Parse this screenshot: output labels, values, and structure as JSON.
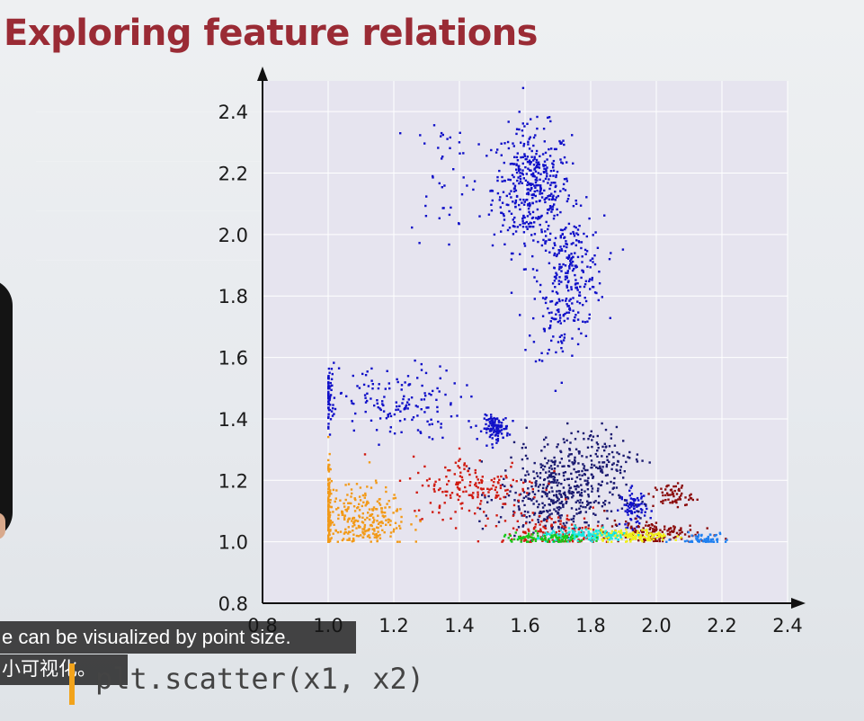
{
  "slide": {
    "title": "Exploring feature relations",
    "code": "plt.scatter(x1, x2)"
  },
  "subtitles": {
    "english": "e can be visualized by point size.",
    "chinese": "小可视化。"
  },
  "colors": {
    "title": "#9a2b35",
    "plot_background": "#e6e4ef",
    "caption_background": "#141414",
    "cursor": "#f2a31b"
  },
  "chart_data": {
    "type": "scatter",
    "xlim": [
      0.8,
      2.4
    ],
    "ylim": [
      0.8,
      2.5
    ],
    "x_ticks": [
      "0.8",
      "1.0",
      "1.2",
      "1.4",
      "1.6",
      "1.8",
      "2.0",
      "2.2",
      "2.4"
    ],
    "y_ticks": [
      "0.8",
      "1.0",
      "1.2",
      "1.4",
      "1.6",
      "1.8",
      "2.0",
      "2.2",
      "2.4"
    ],
    "x_tick_values": [
      0.8,
      1.0,
      1.2,
      1.4,
      1.6,
      1.8,
      2.0,
      2.2,
      2.4
    ],
    "y_tick_values": [
      0.8,
      1.0,
      1.2,
      1.4,
      1.6,
      1.8,
      2.0,
      2.2,
      2.4
    ],
    "grid": true,
    "clusters": [
      {
        "color": "#1010c8",
        "cx": 1.62,
        "cy": 2.15,
        "sx": 0.06,
        "sy": 0.1,
        "n": 420
      },
      {
        "color": "#1010c8",
        "cx": 1.74,
        "cy": 1.88,
        "sx": 0.05,
        "sy": 0.09,
        "n": 220
      },
      {
        "color": "#1010c8",
        "cx": 1.7,
        "cy": 1.72,
        "sx": 0.04,
        "sy": 0.08,
        "n": 70
      },
      {
        "color": "#1010c8",
        "cx": 1.35,
        "cy": 2.2,
        "sx": 0.05,
        "sy": 0.12,
        "n": 40
      },
      {
        "color": "#1010c8",
        "cx": 1.2,
        "cy": 1.45,
        "sx": 0.1,
        "sy": 0.06,
        "n": 150
      },
      {
        "color": "#1010c8",
        "cx": 1.0,
        "cy": 1.48,
        "sx": 0.01,
        "sy": 0.05,
        "n": 60
      },
      {
        "color": "#1010c8",
        "cx": 1.51,
        "cy": 1.37,
        "sx": 0.02,
        "sy": 0.02,
        "n": 120
      },
      {
        "color": "#1010c8",
        "cx": 1.93,
        "cy": 1.11,
        "sx": 0.02,
        "sy": 0.03,
        "n": 90
      },
      {
        "color": "#1a1a70",
        "cx": 1.7,
        "cy": 1.15,
        "sx": 0.09,
        "sy": 0.07,
        "n": 420
      },
      {
        "color": "#1a1a70",
        "cx": 1.8,
        "cy": 1.28,
        "sx": 0.08,
        "sy": 0.05,
        "n": 120
      },
      {
        "color": "#d01a10",
        "cx": 1.45,
        "cy": 1.18,
        "sx": 0.1,
        "sy": 0.05,
        "n": 180
      },
      {
        "color": "#d01a10",
        "cx": 1.68,
        "cy": 1.03,
        "sx": 0.08,
        "sy": 0.03,
        "n": 140
      },
      {
        "color": "#8a0a0a",
        "cx": 2.05,
        "cy": 1.15,
        "sx": 0.03,
        "sy": 0.02,
        "n": 60
      },
      {
        "color": "#8a0a0a",
        "cx": 1.98,
        "cy": 1.03,
        "sx": 0.07,
        "sy": 0.02,
        "n": 130
      },
      {
        "color": "#f29a18",
        "cx": 1.1,
        "cy": 1.08,
        "sx": 0.07,
        "sy": 0.05,
        "n": 280
      },
      {
        "color": "#f29a18",
        "cx": 1.0,
        "cy": 1.12,
        "sx": 0.004,
        "sy": 0.09,
        "n": 90
      },
      {
        "color": "#f0f018",
        "cx": 1.92,
        "cy": 1.02,
        "sx": 0.06,
        "sy": 0.01,
        "n": 140
      },
      {
        "color": "#18e8e0",
        "cx": 1.78,
        "cy": 1.02,
        "sx": 0.07,
        "sy": 0.01,
        "n": 140
      },
      {
        "color": "#18c818",
        "cx": 1.66,
        "cy": 1.01,
        "sx": 0.07,
        "sy": 0.01,
        "n": 80
      },
      {
        "color": "#2080f0",
        "cx": 2.14,
        "cy": 1.01,
        "sx": 0.04,
        "sy": 0.01,
        "n": 60
      }
    ]
  }
}
